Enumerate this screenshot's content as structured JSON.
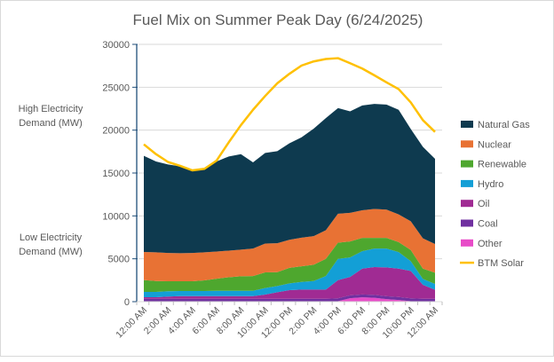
{
  "chart_data": {
    "type": "area",
    "stacked": true,
    "title": "Fuel Mix on Summer Peak Day (6/24/2025)",
    "xlabel": "",
    "ylabel": "",
    "annotations": {
      "high": [
        "High Electricity",
        "Demand (MW)"
      ],
      "low": [
        "Low Electricity",
        "Demand (MW)"
      ]
    },
    "ylim": [
      0,
      30000
    ],
    "yticks": [
      0,
      5000,
      10000,
      15000,
      20000,
      25000,
      30000
    ],
    "ytick_labels": [
      "0",
      "5000",
      "10000",
      "15000",
      "20000",
      "25000",
      "30000"
    ],
    "x": [
      "12:00 AM",
      "1:00 AM",
      "2:00 AM",
      "3:00 AM",
      "4:00 AM",
      "5:00 AM",
      "6:00 AM",
      "7:00 AM",
      "8:00 AM",
      "9:00 AM",
      "10:00 AM",
      "11:00 AM",
      "12:00 PM",
      "1:00 PM",
      "2:00 PM",
      "3:00 PM",
      "4:00 PM",
      "5:00 PM",
      "6:00 PM",
      "7:00 PM",
      "8:00 PM",
      "9:00 PM",
      "10:00 PM",
      "11:00 PM",
      "12:00 AM"
    ],
    "xtick_labels": [
      "12:00 AM",
      "2:00 AM",
      "4:00 AM",
      "6:00 AM",
      "8:00 AM",
      "10:00 AM",
      "12:00 PM",
      "2:00 PM",
      "4:00 PM",
      "6:00 PM",
      "8:00 PM",
      "10:00 PM",
      "12:00 AM"
    ],
    "grid": true,
    "legend_position": "right",
    "stack_order_bottom_up": [
      "Other",
      "Coal",
      "Oil",
      "Hydro",
      "Renewable",
      "Nuclear",
      "Natural Gas"
    ],
    "series": [
      {
        "name": "Natural Gas",
        "color": "#0e3a4f",
        "values": [
          11220,
          10600,
          10320,
          10120,
          9640,
          9740,
          10500,
          10980,
          11140,
          10050,
          10560,
          10740,
          11250,
          11700,
          12530,
          13070,
          12320,
          11830,
          12210,
          12250,
          12250,
          12190,
          10770,
          10660,
          9940
        ]
      },
      {
        "name": "Nuclear",
        "color": "#e87234",
        "values": [
          3270,
          3340,
          3300,
          3270,
          3300,
          3270,
          3170,
          3100,
          3100,
          3200,
          3370,
          3370,
          3270,
          3340,
          3340,
          3340,
          3370,
          3340,
          3230,
          3370,
          3300,
          3230,
          3340,
          3540,
          3340
        ]
      },
      {
        "name": "Renewable",
        "color": "#4ea72e",
        "values": [
          1380,
          1270,
          1170,
          1140,
          1140,
          1240,
          1410,
          1580,
          1690,
          1720,
          1820,
          1620,
          1820,
          1820,
          1890,
          2000,
          1890,
          1860,
          1550,
          1240,
          1240,
          1170,
          1310,
          1200,
          1310
        ]
      },
      {
        "name": "Hydro",
        "color": "#139fd6",
        "values": [
          620,
          620,
          620,
          590,
          590,
          590,
          620,
          620,
          620,
          620,
          760,
          720,
          790,
          890,
          1000,
          1580,
          2480,
          2270,
          2030,
          2170,
          2200,
          1930,
          1140,
          690,
          690
        ]
      },
      {
        "name": "Oil",
        "color": "#a02b93",
        "values": [
          180,
          180,
          250,
          310,
          310,
          310,
          310,
          310,
          310,
          310,
          490,
          760,
          1000,
          1070,
          1070,
          1070,
          2120,
          2150,
          3010,
          3240,
          3350,
          3310,
          3190,
          1620,
          1040
        ]
      },
      {
        "name": "Coal",
        "color": "#7030a0",
        "values": [
          340,
          340,
          340,
          340,
          340,
          340,
          340,
          340,
          340,
          340,
          340,
          340,
          340,
          340,
          340,
          340,
          340,
          340,
          340,
          340,
          340,
          340,
          340,
          340,
          340
        ]
      },
      {
        "name": "Other",
        "color": "#e84bc8",
        "values": [
          0,
          0,
          0,
          0,
          0,
          0,
          0,
          0,
          0,
          0,
          0,
          0,
          0,
          0,
          0,
          0,
          50,
          400,
          500,
          450,
          300,
          200,
          50,
          0,
          0
        ]
      },
      {
        "name": "BTM Solar",
        "color": "#ffc000",
        "type": "line",
        "values": [
          18340,
          17200,
          16280,
          15830,
          15310,
          15490,
          16450,
          18580,
          20580,
          22370,
          23980,
          25460,
          26570,
          27530,
          28010,
          28290,
          28390,
          27800,
          27180,
          26390,
          25570,
          24780,
          23230,
          21160,
          19790
        ]
      }
    ]
  }
}
